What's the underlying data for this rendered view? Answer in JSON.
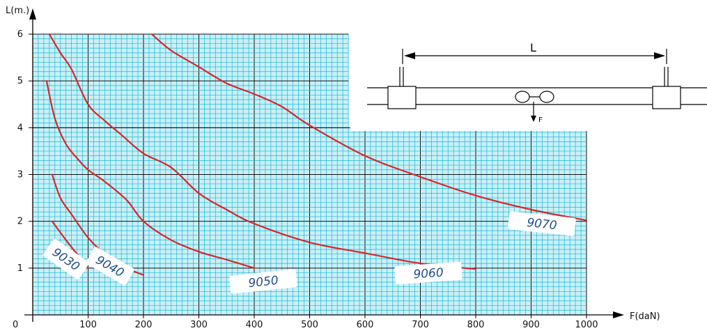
{
  "chart_data": {
    "type": "line",
    "xlabel": "F(daN)",
    "ylabel": "L(m.)",
    "origin_label": "0",
    "xlim": [
      0,
      1000
    ],
    "ylim": [
      0,
      6
    ],
    "x_ticks": [
      "100",
      "200",
      "300",
      "400",
      "500",
      "600",
      "700",
      "800",
      "900",
      "1000"
    ],
    "y_ticks": [
      "1",
      "2",
      "3",
      "4",
      "5",
      "6"
    ],
    "grid": true,
    "series": [
      {
        "name": "9030",
        "points": [
          [
            35,
            2
          ],
          [
            60,
            1.6
          ],
          [
            80,
            1.3
          ],
          [
            100,
            1.0
          ]
        ]
      },
      {
        "name": "9040",
        "points": [
          [
            35,
            3
          ],
          [
            50,
            2.5
          ],
          [
            70,
            2.15
          ],
          [
            100,
            1.65
          ],
          [
            130,
            1.3
          ],
          [
            160,
            1.05
          ],
          [
            200,
            0.85
          ]
        ]
      },
      {
        "name": "9050",
        "points": [
          [
            25,
            5
          ],
          [
            40,
            4.2
          ],
          [
            60,
            3.65
          ],
          [
            80,
            3.35
          ],
          [
            100,
            3.1
          ],
          [
            130,
            2.85
          ],
          [
            170,
            2.45
          ],
          [
            200,
            2.0
          ],
          [
            250,
            1.6
          ],
          [
            300,
            1.35
          ],
          [
            350,
            1.18
          ],
          [
            400,
            1.0
          ]
        ]
      },
      {
        "name": "9060",
        "points": [
          [
            30,
            6
          ],
          [
            50,
            5.6
          ],
          [
            70,
            5.25
          ],
          [
            100,
            4.5
          ],
          [
            130,
            4.15
          ],
          [
            160,
            3.85
          ],
          [
            200,
            3.45
          ],
          [
            250,
            3.15
          ],
          [
            300,
            2.6
          ],
          [
            350,
            2.25
          ],
          [
            400,
            1.95
          ],
          [
            500,
            1.55
          ],
          [
            600,
            1.32
          ],
          [
            700,
            1.1
          ],
          [
            800,
            0.98
          ]
        ]
      },
      {
        "name": "9070",
        "points": [
          [
            215,
            6
          ],
          [
            250,
            5.65
          ],
          [
            300,
            5.3
          ],
          [
            350,
            4.95
          ],
          [
            400,
            4.72
          ],
          [
            450,
            4.45
          ],
          [
            500,
            4.05
          ],
          [
            600,
            3.4
          ],
          [
            700,
            2.95
          ],
          [
            800,
            2.55
          ],
          [
            900,
            2.25
          ],
          [
            1000,
            2.02
          ]
        ]
      }
    ]
  },
  "colors": {
    "curve": "#d62728",
    "grid_fine": "#1fb6d6",
    "grid_fill": "#c9f0f7",
    "grid_major": "#111111",
    "label": "#1f4e8c"
  },
  "diagram": {
    "length_label": "L",
    "force_label": "F"
  }
}
